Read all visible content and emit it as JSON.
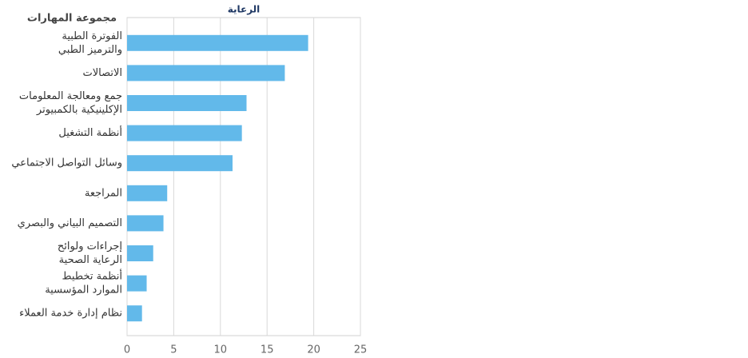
{
  "chart_data": {
    "type": "bar",
    "orientation": "horizontal",
    "title": "الرعاية",
    "y_axis_label": "مجموعة المهارات",
    "categories": [
      [
        "الفوترة الطبية",
        "والترميز الطبي"
      ],
      [
        "الاتصالات"
      ],
      [
        "جمع ومعالجة المعلومات",
        "الإكلينيكية بالكمبيوتر"
      ],
      [
        "أنظمة التشغيل"
      ],
      [
        "وسائل التواصل الاجتماعي"
      ],
      [
        "المراجعة"
      ],
      [
        "التصميم البياني والبصري"
      ],
      [
        "إجراءات ولوائح",
        "الرعاية الصحية"
      ],
      [
        "أنظمة تخطيط",
        "الموارد المؤسسية"
      ],
      [
        "نظام إدارة خدمة العملاء"
      ]
    ],
    "values": [
      19.4,
      16.9,
      12.8,
      12.3,
      11.3,
      4.3,
      3.9,
      2.8,
      2.1,
      1.6
    ],
    "color": "#62b9ea",
    "xlim": [
      0,
      25
    ],
    "xticks": [
      0,
      5,
      10,
      15,
      20,
      25
    ],
    "grid": true
  }
}
